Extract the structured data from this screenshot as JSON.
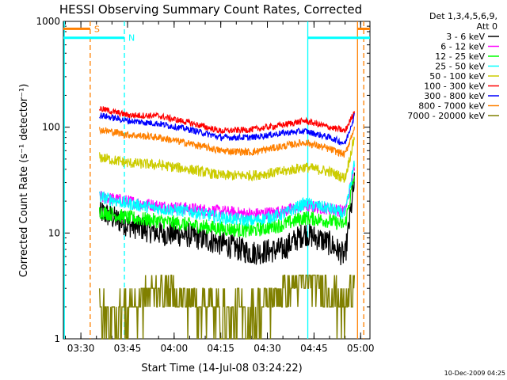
{
  "chart_data": {
    "type": "line",
    "title": "HESSI Observing Summary Count Rates, Corrected",
    "xlabel": "Start Time (14-Jul-08 03:24:22)",
    "ylabel": "Corrected Count Rate (s⁻¹ detector⁻¹)",
    "y_scale": "log",
    "xlim": [
      "03:24:22",
      "05:03:00"
    ],
    "ylim": [
      1,
      1000
    ],
    "x_ticks": [
      "03:30",
      "03:45",
      "04:00",
      "04:15",
      "04:30",
      "04:45",
      "05:00"
    ],
    "y_ticks": [
      "1",
      "10",
      "100",
      "1000"
    ],
    "legend_header": [
      "Det 1,3,4,5,6,9,",
      "Att 0"
    ],
    "legend_position": "right",
    "timestamp": "10-Dec-2009 04:25",
    "series": [
      {
        "name": "3 - 6 keV",
        "color": "#000000",
        "x": [
          "03:36",
          "03:45",
          "03:55",
          "04:05",
          "04:15",
          "04:25",
          "04:35",
          "04:42",
          "04:50",
          "04:55",
          "04:58"
        ],
        "values": [
          16,
          12,
          10,
          9.5,
          8,
          6.5,
          7,
          10,
          8,
          6,
          30
        ]
      },
      {
        "name": "6 - 12 keV",
        "color": "#ff00ff",
        "x": [
          "03:36",
          "03:45",
          "03:55",
          "04:05",
          "04:15",
          "04:25",
          "04:35",
          "04:42",
          "04:50",
          "04:55",
          "04:58"
        ],
        "values": [
          22,
          20,
          18,
          17,
          16,
          15,
          16,
          18,
          17,
          16,
          40
        ]
      },
      {
        "name": "12 - 25 keV",
        "color": "#00ff00",
        "x": [
          "03:36",
          "03:45",
          "03:55",
          "04:05",
          "04:15",
          "04:25",
          "04:35",
          "04:42",
          "04:50",
          "04:55",
          "04:58"
        ],
        "values": [
          16,
          14,
          13,
          12,
          11,
          10.5,
          12,
          14,
          13,
          12,
          35
        ]
      },
      {
        "name": "25 - 50 keV",
        "color": "#00ffff",
        "x": [
          "03:36",
          "03:45",
          "03:55",
          "04:05",
          "04:15",
          "04:25",
          "04:35",
          "04:42",
          "04:50",
          "04:55",
          "04:58"
        ],
        "values": [
          22,
          19,
          17,
          16,
          14,
          13,
          15,
          19,
          17,
          15,
          45
        ]
      },
      {
        "name": "50 - 100 keV",
        "color": "#cccc00",
        "x": [
          "03:36",
          "03:45",
          "03:55",
          "04:05",
          "04:15",
          "04:25",
          "04:35",
          "04:42",
          "04:50",
          "04:55",
          "04:58"
        ],
        "values": [
          52,
          46,
          44,
          40,
          35,
          35,
          38,
          42,
          38,
          33,
          80
        ]
      },
      {
        "name": "100 - 300 keV",
        "color": "#ff0000",
        "x": [
          "03:36",
          "03:45",
          "03:55",
          "04:05",
          "04:15",
          "04:25",
          "04:35",
          "04:42",
          "04:50",
          "04:55",
          "04:58"
        ],
        "values": [
          150,
          130,
          128,
          110,
          92,
          95,
          105,
          115,
          100,
          92,
          140
        ]
      },
      {
        "name": "300 - 800 keV",
        "color": "#0000ff",
        "x": [
          "03:36",
          "03:45",
          "03:55",
          "04:05",
          "04:15",
          "04:25",
          "04:35",
          "04:42",
          "04:50",
          "04:55",
          "04:58"
        ],
        "values": [
          130,
          115,
          108,
          95,
          80,
          80,
          88,
          92,
          80,
          70,
          130
        ]
      },
      {
        "name": "800 - 7000 keV",
        "color": "#ff8000",
        "x": [
          "03:36",
          "03:45",
          "03:55",
          "04:05",
          "04:15",
          "04:25",
          "04:35",
          "04:42",
          "04:50",
          "04:55",
          "04:58"
        ],
        "values": [
          95,
          85,
          80,
          70,
          60,
          58,
          66,
          72,
          62,
          55,
          100
        ]
      },
      {
        "name": "7000 - 20000 keV",
        "color": "#808000",
        "x": [
          "03:36",
          "03:45",
          "03:55",
          "04:05",
          "04:15",
          "04:25",
          "04:35",
          "04:42",
          "04:50",
          "04:55",
          "04:58"
        ],
        "values": [
          1.5,
          2,
          3,
          2.5,
          1.8,
          1.7,
          3,
          3.5,
          3,
          2,
          4
        ]
      }
    ],
    "annotations": [
      {
        "label": "S",
        "color": "#ff8000",
        "x_start": "03:24:22",
        "x_end": "03:33:00",
        "y": 850
      },
      {
        "label": "N",
        "color": "#00ffff",
        "x_start": "03:24:22",
        "x_end": "03:44:00",
        "y": 700
      },
      {
        "label": "",
        "color": "#00ffff",
        "x_start": "04:43:00",
        "x_end": "05:03:00",
        "y": 700
      },
      {
        "label": "",
        "color": "#ff8000",
        "x_start": "04:59:00",
        "x_end": "05:03:00",
        "y": 850
      }
    ],
    "vertical_lines": [
      {
        "x": "03:24:40",
        "color": "#00ffff",
        "style": "solid"
      },
      {
        "x": "03:33:00",
        "color": "#ff8000",
        "style": "dashed"
      },
      {
        "x": "03:44:00",
        "color": "#00ffff",
        "style": "dashed"
      },
      {
        "x": "04:43:00",
        "color": "#00ffff",
        "style": "solid"
      },
      {
        "x": "04:59:00",
        "color": "#ff8000",
        "style": "solid"
      },
      {
        "x": "05:01:00",
        "color": "#ff8000",
        "style": "dashed"
      }
    ]
  }
}
